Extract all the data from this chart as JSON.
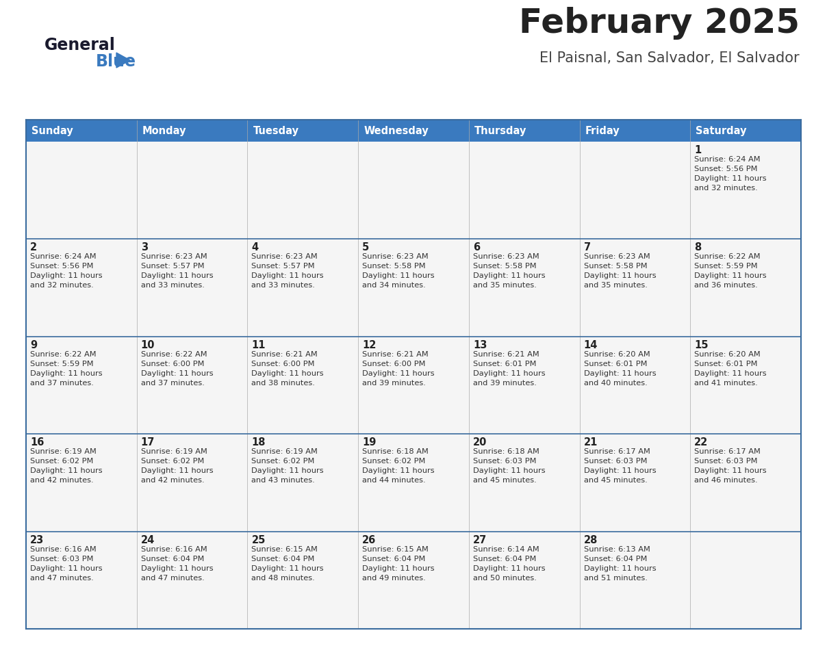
{
  "title": "February 2025",
  "subtitle": "El Paisnal, San Salvador, El Salvador",
  "header_color": "#3a7abf",
  "header_text_color": "#ffffff",
  "day_names": [
    "Sunday",
    "Monday",
    "Tuesday",
    "Wednesday",
    "Thursday",
    "Friday",
    "Saturday"
  ],
  "title_color": "#222222",
  "subtitle_color": "#444444",
  "cell_bg": "#f5f5f5",
  "cell_bg_white": "#ffffff",
  "day_num_color": "#222222",
  "info_text_color": "#333333",
  "border_color": "#3a6b9e",
  "sep_color": "#aaaaaa",
  "logo_general_color": "#1a1a2e",
  "logo_blue_color": "#3a7abf",
  "logo_triangle_color": "#3a7abf",
  "calendar": [
    [
      null,
      null,
      null,
      null,
      null,
      null,
      {
        "day": 1,
        "sunrise": "6:24 AM",
        "sunset": "5:56 PM",
        "daylight": "11 hours and 32 minutes"
      }
    ],
    [
      {
        "day": 2,
        "sunrise": "6:24 AM",
        "sunset": "5:56 PM",
        "daylight": "11 hours and 32 minutes"
      },
      {
        "day": 3,
        "sunrise": "6:23 AM",
        "sunset": "5:57 PM",
        "daylight": "11 hours and 33 minutes"
      },
      {
        "day": 4,
        "sunrise": "6:23 AM",
        "sunset": "5:57 PM",
        "daylight": "11 hours and 33 minutes"
      },
      {
        "day": 5,
        "sunrise": "6:23 AM",
        "sunset": "5:58 PM",
        "daylight": "11 hours and 34 minutes"
      },
      {
        "day": 6,
        "sunrise": "6:23 AM",
        "sunset": "5:58 PM",
        "daylight": "11 hours and 35 minutes"
      },
      {
        "day": 7,
        "sunrise": "6:23 AM",
        "sunset": "5:58 PM",
        "daylight": "11 hours and 35 minutes"
      },
      {
        "day": 8,
        "sunrise": "6:22 AM",
        "sunset": "5:59 PM",
        "daylight": "11 hours and 36 minutes"
      }
    ],
    [
      {
        "day": 9,
        "sunrise": "6:22 AM",
        "sunset": "5:59 PM",
        "daylight": "11 hours and 37 minutes"
      },
      {
        "day": 10,
        "sunrise": "6:22 AM",
        "sunset": "6:00 PM",
        "daylight": "11 hours and 37 minutes"
      },
      {
        "day": 11,
        "sunrise": "6:21 AM",
        "sunset": "6:00 PM",
        "daylight": "11 hours and 38 minutes"
      },
      {
        "day": 12,
        "sunrise": "6:21 AM",
        "sunset": "6:00 PM",
        "daylight": "11 hours and 39 minutes"
      },
      {
        "day": 13,
        "sunrise": "6:21 AM",
        "sunset": "6:01 PM",
        "daylight": "11 hours and 39 minutes"
      },
      {
        "day": 14,
        "sunrise": "6:20 AM",
        "sunset": "6:01 PM",
        "daylight": "11 hours and 40 minutes"
      },
      {
        "day": 15,
        "sunrise": "6:20 AM",
        "sunset": "6:01 PM",
        "daylight": "11 hours and 41 minutes"
      }
    ],
    [
      {
        "day": 16,
        "sunrise": "6:19 AM",
        "sunset": "6:02 PM",
        "daylight": "11 hours and 42 minutes"
      },
      {
        "day": 17,
        "sunrise": "6:19 AM",
        "sunset": "6:02 PM",
        "daylight": "11 hours and 42 minutes"
      },
      {
        "day": 18,
        "sunrise": "6:19 AM",
        "sunset": "6:02 PM",
        "daylight": "11 hours and 43 minutes"
      },
      {
        "day": 19,
        "sunrise": "6:18 AM",
        "sunset": "6:02 PM",
        "daylight": "11 hours and 44 minutes"
      },
      {
        "day": 20,
        "sunrise": "6:18 AM",
        "sunset": "6:03 PM",
        "daylight": "11 hours and 45 minutes"
      },
      {
        "day": 21,
        "sunrise": "6:17 AM",
        "sunset": "6:03 PM",
        "daylight": "11 hours and 45 minutes"
      },
      {
        "day": 22,
        "sunrise": "6:17 AM",
        "sunset": "6:03 PM",
        "daylight": "11 hours and 46 minutes"
      }
    ],
    [
      {
        "day": 23,
        "sunrise": "6:16 AM",
        "sunset": "6:03 PM",
        "daylight": "11 hours and 47 minutes"
      },
      {
        "day": 24,
        "sunrise": "6:16 AM",
        "sunset": "6:04 PM",
        "daylight": "11 hours and 47 minutes"
      },
      {
        "day": 25,
        "sunrise": "6:15 AM",
        "sunset": "6:04 PM",
        "daylight": "11 hours and 48 minutes"
      },
      {
        "day": 26,
        "sunrise": "6:15 AM",
        "sunset": "6:04 PM",
        "daylight": "11 hours and 49 minutes"
      },
      {
        "day": 27,
        "sunrise": "6:14 AM",
        "sunset": "6:04 PM",
        "daylight": "11 hours and 50 minutes"
      },
      {
        "day": 28,
        "sunrise": "6:13 AM",
        "sunset": "6:04 PM",
        "daylight": "11 hours and 51 minutes"
      },
      null
    ]
  ]
}
